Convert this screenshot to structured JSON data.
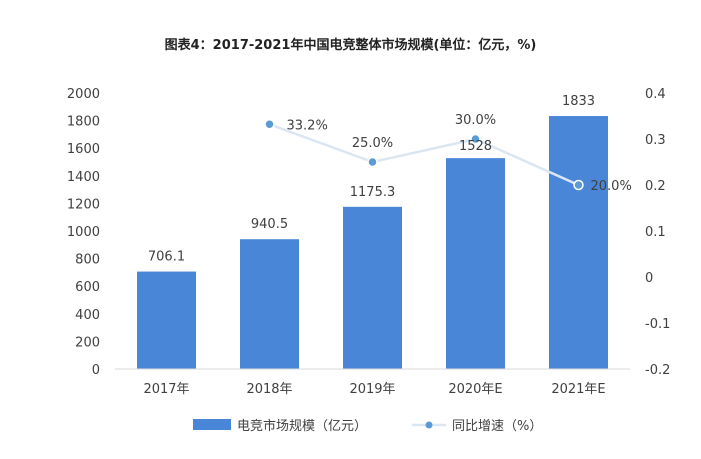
{
  "chart_data": {
    "type": "bar",
    "title": "图表4：2017-2021年中国电竞整体市场规模(单位：亿元，%)",
    "categories": [
      "2017年",
      "2018年",
      "2019年",
      "2020年E",
      "2021年E"
    ],
    "series": [
      {
        "name": "电竞市场规模（亿元）",
        "type": "bar",
        "axis": "left",
        "color": "#4a86d8",
        "values": [
          706.1,
          940.5,
          1175.3,
          1528,
          1833
        ],
        "labels": [
          "706.1",
          "940.5",
          "1175.3",
          "1528",
          "1833"
        ]
      },
      {
        "name": "同比增速（%）",
        "type": "line",
        "axis": "right",
        "color": "#5b9bd5",
        "line_color": "#dbe6f3",
        "values": [
          null,
          0.332,
          0.25,
          0.3,
          0.2
        ],
        "labels": [
          "",
          "33.2%",
          "25.0%",
          "30.0%",
          "20.0%"
        ]
      }
    ],
    "y_left": {
      "min": 0,
      "max": 2000,
      "step": 200,
      "ticks": [
        "0",
        "200",
        "400",
        "600",
        "800",
        "1000",
        "1200",
        "1400",
        "1600",
        "1800",
        "2000"
      ]
    },
    "y_right": {
      "min": -0.2,
      "max": 0.4,
      "step": 0.1,
      "ticks": [
        "-0.2",
        "-0.1",
        "0",
        "0.1",
        "0.2",
        "0.3",
        "0.4"
      ]
    },
    "grid": false,
    "legend_position": "bottom"
  }
}
